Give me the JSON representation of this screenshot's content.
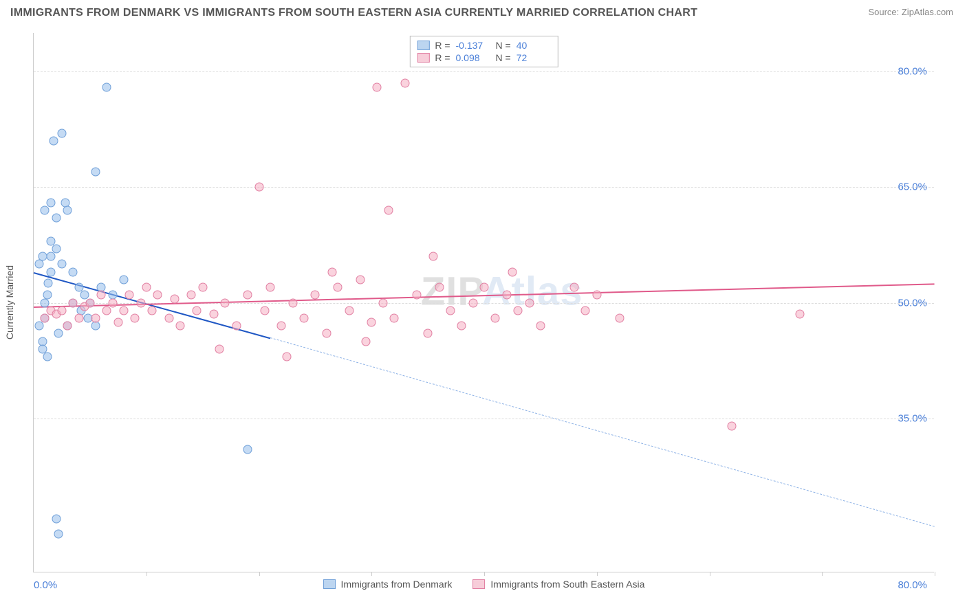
{
  "header": {
    "title": "IMMIGRANTS FROM DENMARK VS IMMIGRANTS FROM SOUTH EASTERN ASIA CURRENTLY MARRIED CORRELATION CHART",
    "source": "Source: ZipAtlas.com"
  },
  "chart": {
    "type": "scatter",
    "xlim": [
      0,
      80
    ],
    "ylim": [
      15,
      85
    ],
    "x_label_min": "0.0%",
    "x_label_max": "80.0%",
    "y_title": "Currently Married",
    "y_ticks": [
      {
        "v": 35,
        "label": "35.0%"
      },
      {
        "v": 50,
        "label": "50.0%"
      },
      {
        "v": 65,
        "label": "65.0%"
      },
      {
        "v": 80,
        "label": "80.0%"
      }
    ],
    "x_ticks": [
      10,
      20,
      30,
      40,
      50,
      60,
      70,
      80
    ],
    "background_color": "#ffffff",
    "grid_color": "#dddddd",
    "marker_size": 13,
    "watermark": {
      "z": "ZIP",
      "rest": "Atlas"
    },
    "series": [
      {
        "id": "denmark",
        "label": "Immigrants from Denmark",
        "fill": "rgba(150,190,235,0.55)",
        "stroke": "#6f9fd8",
        "R": "-0.137",
        "N": "40",
        "swatch_fill": "#bcd5f0",
        "swatch_border": "#6f9fd8",
        "trend": {
          "x1": 0,
          "y1": 54,
          "x2_solid": 21,
          "y2_solid": 45.5,
          "x2": 80,
          "y2": 21,
          "color": "#1f57c4",
          "dash_color": "#8fb3e6"
        },
        "points": [
          [
            0.5,
            47
          ],
          [
            0.8,
            45
          ],
          [
            1.0,
            48
          ],
          [
            1.0,
            50
          ],
          [
            1.2,
            51
          ],
          [
            1.3,
            52.5
          ],
          [
            1.5,
            54
          ],
          [
            1.5,
            56
          ],
          [
            1.0,
            62
          ],
          [
            1.5,
            63
          ],
          [
            2.0,
            61
          ],
          [
            2.8,
            63
          ],
          [
            3.0,
            62
          ],
          [
            3.5,
            54
          ],
          [
            4.0,
            52
          ],
          [
            4.5,
            51
          ],
          [
            4.8,
            48
          ],
          [
            5.0,
            50
          ],
          [
            6.0,
            52
          ],
          [
            7.0,
            51
          ],
          [
            8.0,
            53
          ],
          [
            1.8,
            71
          ],
          [
            2.5,
            72
          ],
          [
            5.5,
            67
          ],
          [
            0.8,
            44
          ],
          [
            1.2,
            43
          ],
          [
            2.2,
            46
          ],
          [
            3.0,
            47
          ],
          [
            6.5,
            78
          ],
          [
            2.0,
            22
          ],
          [
            2.2,
            20
          ],
          [
            19.0,
            31
          ],
          [
            0.5,
            55
          ],
          [
            0.8,
            56
          ],
          [
            1.5,
            58
          ],
          [
            2.0,
            57
          ],
          [
            2.5,
            55
          ],
          [
            3.5,
            50
          ],
          [
            4.2,
            49
          ],
          [
            5.5,
            47
          ]
        ]
      },
      {
        "id": "sea",
        "label": "Immigrants from South Eastern Asia",
        "fill": "rgba(245,175,195,0.55)",
        "stroke": "#e17fa2",
        "R": "0.098",
        "N": "72",
        "swatch_fill": "#f7cdd9",
        "swatch_border": "#e17fa2",
        "trend": {
          "x1": 0,
          "y1": 49.5,
          "x2_solid": 80,
          "y2_solid": 52.5,
          "x2": 80,
          "y2": 52.5,
          "color": "#e05a8a",
          "dash_color": "#e05a8a"
        },
        "points": [
          [
            1.0,
            48
          ],
          [
            1.5,
            49
          ],
          [
            2.0,
            48.5
          ],
          [
            2.5,
            49
          ],
          [
            3.0,
            47
          ],
          [
            3.5,
            50
          ],
          [
            4.0,
            48
          ],
          [
            4.5,
            49.5
          ],
          [
            5.0,
            50
          ],
          [
            5.5,
            48
          ],
          [
            6.0,
            51
          ],
          [
            6.5,
            49
          ],
          [
            7.0,
            50
          ],
          [
            7.5,
            47.5
          ],
          [
            8.0,
            49
          ],
          [
            8.5,
            51
          ],
          [
            9.0,
            48
          ],
          [
            9.5,
            50
          ],
          [
            10.0,
            52
          ],
          [
            10.5,
            49
          ],
          [
            11.0,
            51
          ],
          [
            12.0,
            48
          ],
          [
            12.5,
            50.5
          ],
          [
            13.0,
            47
          ],
          [
            14.0,
            51
          ],
          [
            14.5,
            49
          ],
          [
            15.0,
            52
          ],
          [
            16.0,
            48.5
          ],
          [
            16.5,
            44
          ],
          [
            17.0,
            50
          ],
          [
            18.0,
            47
          ],
          [
            19.0,
            51
          ],
          [
            20.0,
            65
          ],
          [
            20.5,
            49
          ],
          [
            21.0,
            52
          ],
          [
            22.0,
            47
          ],
          [
            23.0,
            50
          ],
          [
            24.0,
            48
          ],
          [
            25.0,
            51
          ],
          [
            26.0,
            46
          ],
          [
            27.0,
            52
          ],
          [
            28.0,
            49
          ],
          [
            29.0,
            53
          ],
          [
            30.0,
            47.5
          ],
          [
            30.5,
            78
          ],
          [
            31.0,
            50
          ],
          [
            32.0,
            48
          ],
          [
            33.0,
            78.5
          ],
          [
            34.0,
            51
          ],
          [
            35.0,
            46
          ],
          [
            36.0,
            52
          ],
          [
            37.0,
            49
          ],
          [
            31.5,
            62
          ],
          [
            38.0,
            47
          ],
          [
            39.0,
            50
          ],
          [
            40.0,
            52
          ],
          [
            41.0,
            48
          ],
          [
            42.0,
            51
          ],
          [
            43.0,
            49
          ],
          [
            35.5,
            56
          ],
          [
            44.0,
            50
          ],
          [
            45.0,
            47
          ],
          [
            48.0,
            52
          ],
          [
            49.0,
            49
          ],
          [
            50.0,
            51
          ],
          [
            52.0,
            48
          ],
          [
            42.5,
            54
          ],
          [
            68.0,
            48.5
          ],
          [
            62.0,
            34
          ],
          [
            22.5,
            43
          ],
          [
            26.5,
            54
          ],
          [
            29.5,
            45
          ]
        ]
      }
    ]
  }
}
